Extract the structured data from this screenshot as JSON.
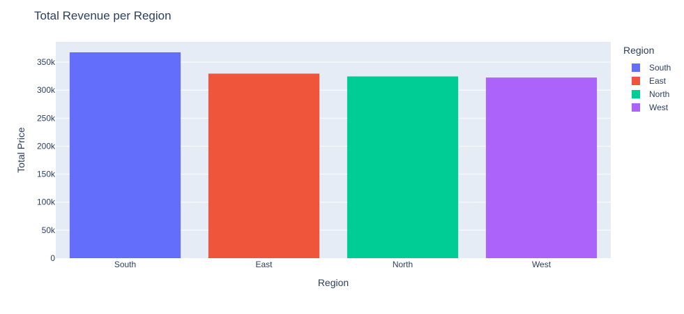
{
  "chart_data": {
    "type": "bar",
    "title": "Total Revenue per Region",
    "xlabel": "Region",
    "ylabel": "Total Price",
    "categories": [
      "South",
      "East",
      "North",
      "West"
    ],
    "values": [
      367500,
      329500,
      324500,
      322500
    ],
    "colors": [
      "#636efa",
      "#ef553b",
      "#00cc96",
      "#ab63fa"
    ],
    "ylim": [
      0,
      367500
    ],
    "yticks": [
      0,
      50000,
      100000,
      150000,
      200000,
      250000,
      300000,
      350000
    ],
    "ytick_labels": [
      "0",
      "50k",
      "100k",
      "150k",
      "200k",
      "250k",
      "300k",
      "350k"
    ],
    "grid": true,
    "legend": {
      "title": "Region",
      "placement": "right",
      "items": [
        "South",
        "East",
        "North",
        "West"
      ]
    },
    "plot_background": "#e5ecf6"
  }
}
